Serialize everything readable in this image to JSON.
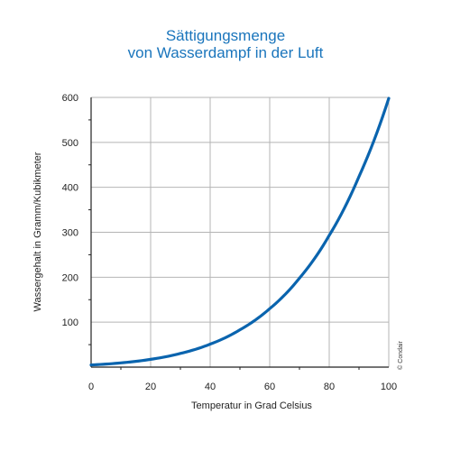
{
  "colors": {
    "title": "#1a75bc",
    "curve": "#0a64ae",
    "grid": "#b4b4b4",
    "axis": "#222222"
  },
  "chart_data": {
    "type": "line",
    "title_lines": [
      "Sättigungsmenge",
      "von Wasserdampf in der Luft"
    ],
    "xlabel": "Temperatur in Grad Celsius",
    "ylabel": "Wassergehalt in Gramm/Kubikmeter",
    "xlim": [
      0,
      100
    ],
    "ylim": [
      0,
      600
    ],
    "x_ticks": [
      0,
      20,
      40,
      60,
      80,
      100
    ],
    "y_ticks": [
      100,
      200,
      300,
      400,
      500,
      600
    ],
    "grid": true,
    "credit": "© Condair",
    "series": [
      {
        "x": [
          0,
          10,
          20,
          30,
          40,
          50,
          60,
          70,
          80,
          90,
          100
        ],
        "y": [
          4.8,
          9.4,
          17.3,
          30.4,
          51.1,
          83,
          130,
          198,
          293,
          424,
          598
        ]
      }
    ]
  }
}
